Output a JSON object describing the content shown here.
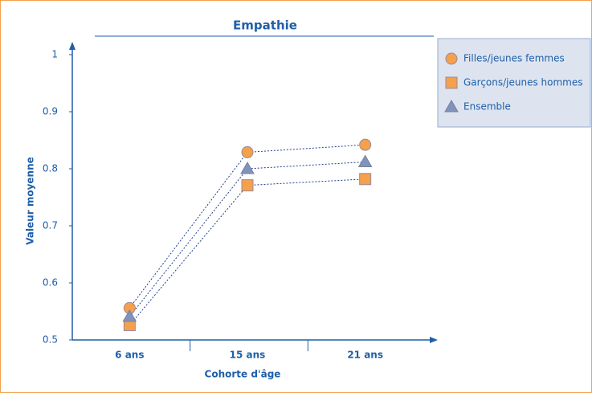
{
  "chart_data": {
    "type": "line",
    "title": "Empathie",
    "x_label": "Cohorte d'âge",
    "y_label": "Valeur moyenne",
    "categories": [
      "6 ans",
      "15 ans",
      "21 ans"
    ],
    "series": [
      {
        "name": "Filles/jeunes femmes",
        "color": "#f5a04a",
        "marker": "circle",
        "values": [
          0.556,
          0.829,
          0.842
        ]
      },
      {
        "name": "Garçons/jeunes hommes",
        "color": "#f5a04a",
        "marker": "square",
        "values": [
          0.526,
          0.771,
          0.782
        ]
      },
      {
        "name": "Ensemble",
        "color": "#8093bd",
        "marker": "triangle",
        "values": [
          0.541,
          0.8,
          0.812
        ]
      }
    ],
    "ylim": [
      0.5,
      1
    ],
    "yticks": [
      0.5,
      0.6,
      0.7,
      0.8,
      0.9,
      1
    ],
    "legend": "upper right"
  }
}
